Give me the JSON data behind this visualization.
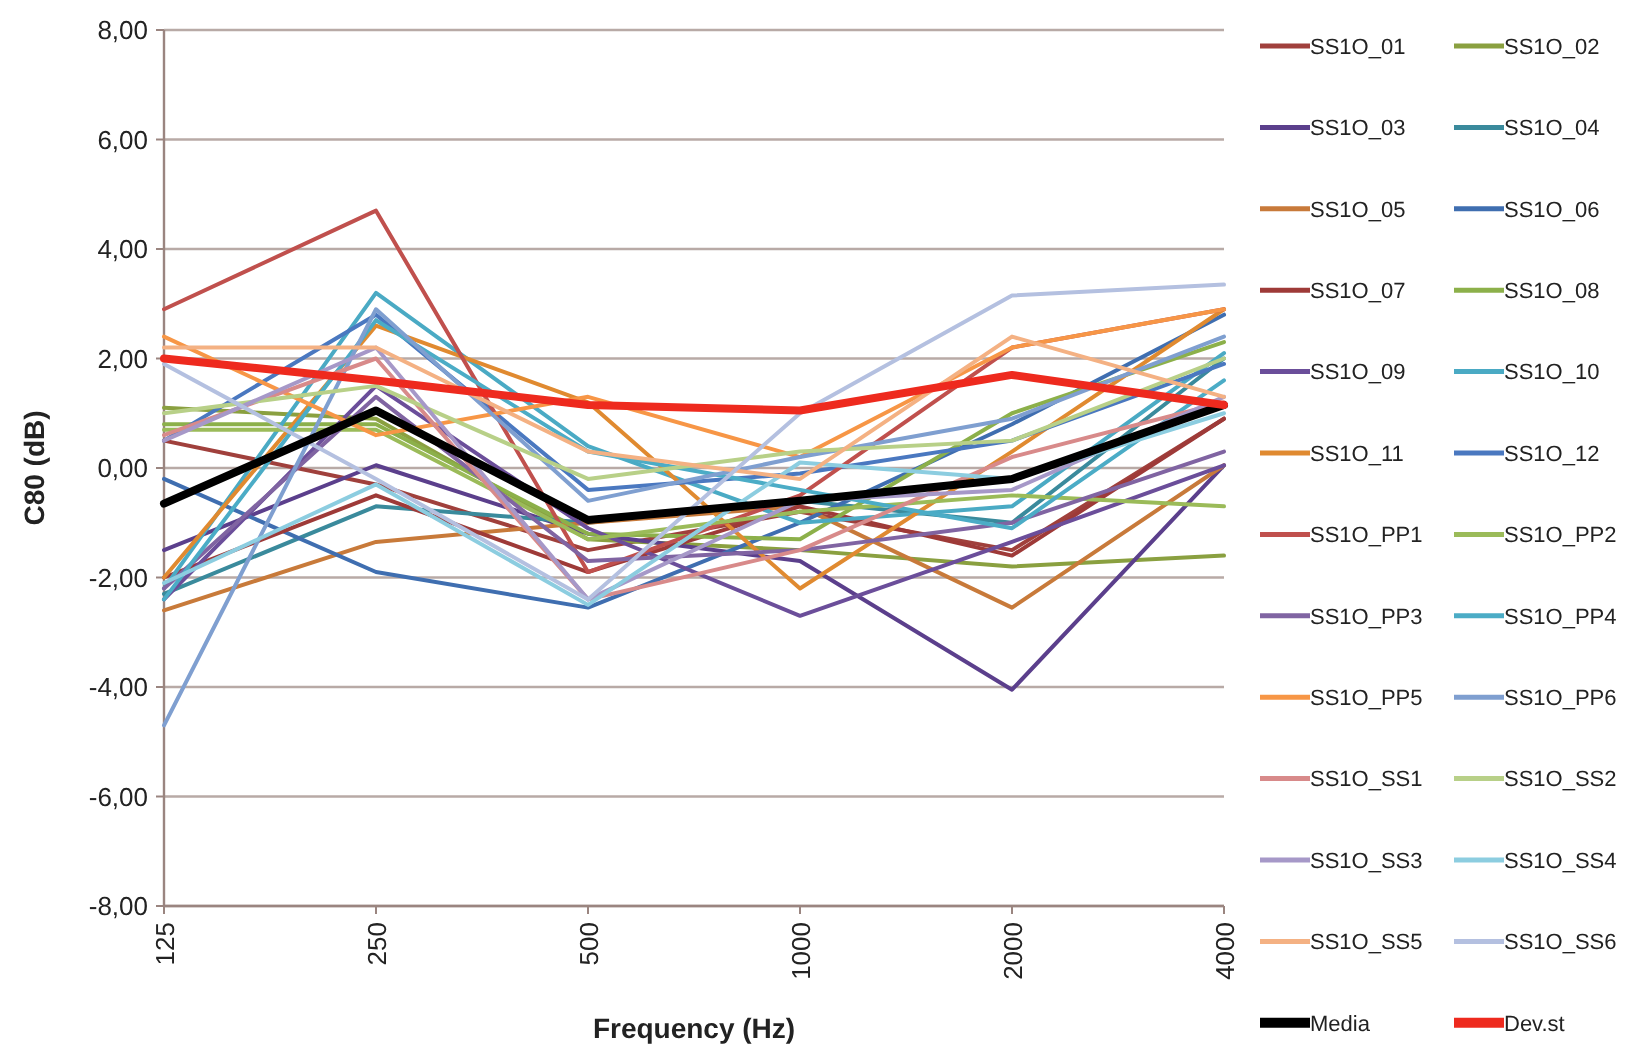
{
  "chart_data": {
    "type": "line",
    "xlabel": "Frequency (Hz)",
    "ylabel": "C80 (dB)",
    "categories": [
      "125",
      "250",
      "500",
      "1000",
      "2000",
      "4000"
    ],
    "ylim": [
      -8,
      8
    ],
    "yticks": [
      {
        "value": -8,
        "label": "-8,00"
      },
      {
        "value": -6,
        "label": "-6,00"
      },
      {
        "value": -4,
        "label": "-4,00"
      },
      {
        "value": -2,
        "label": "-2,00"
      },
      {
        "value": 0,
        "label": "0,00"
      },
      {
        "value": 2,
        "label": "2,00"
      },
      {
        "value": 4,
        "label": "4,00"
      },
      {
        "value": 6,
        "label": "6,00"
      },
      {
        "value": 8,
        "label": "8,00"
      }
    ],
    "grid": "y",
    "legend": "right",
    "marker": "none",
    "series": [
      {
        "name": "SS1O_01",
        "color": "#a0403c",
        "values": [
          0.5,
          -0.3,
          -1.5,
          -0.8,
          -1.5,
          0.9
        ]
      },
      {
        "name": "SS1O_02",
        "color": "#8aa040",
        "values": [
          1.1,
          0.9,
          -1.3,
          -1.5,
          -1.8,
          -1.6
        ]
      },
      {
        "name": "SS1O_03",
        "color": "#5b3f8c",
        "values": [
          -1.5,
          0.05,
          -1.2,
          -1.7,
          -4.05,
          0.05
        ]
      },
      {
        "name": "SS1O_04",
        "color": "#3a8a9c",
        "values": [
          -2.3,
          -0.7,
          -1.0,
          -0.6,
          -1.0,
          2.0
        ]
      },
      {
        "name": "SS1O_05",
        "color": "#c87a3a",
        "values": [
          -2.6,
          -1.35,
          -1.0,
          -0.7,
          -2.55,
          0.05
        ]
      },
      {
        "name": "SS1O_06",
        "color": "#3f6eb0",
        "values": [
          -0.2,
          -1.9,
          -2.55,
          -1.0,
          0.8,
          2.8
        ]
      },
      {
        "name": "SS1O_07",
        "color": "#9e3a38",
        "values": [
          -2.0,
          -0.5,
          -1.9,
          -0.7,
          -1.6,
          0.9
        ]
      },
      {
        "name": "SS1O_08",
        "color": "#8cb04a",
        "values": [
          0.8,
          0.8,
          -1.2,
          -1.3,
          1.0,
          2.3
        ]
      },
      {
        "name": "SS1O_09",
        "color": "#6b4e9a",
        "values": [
          -2.4,
          1.5,
          -1.1,
          -2.7,
          -1.35,
          0.05
        ]
      },
      {
        "name": "SS1O_10",
        "color": "#4aaac4",
        "values": [
          -2.2,
          3.2,
          0.4,
          -1.0,
          -0.7,
          2.1
        ]
      },
      {
        "name": "SS1O_11",
        "color": "#e08a30",
        "values": [
          -2.0,
          2.6,
          1.2,
          -2.2,
          0.3,
          2.9
        ]
      },
      {
        "name": "SS1O_12",
        "color": "#4a78c0",
        "values": [
          0.5,
          2.8,
          -0.4,
          -0.1,
          0.5,
          1.9
        ]
      },
      {
        "name": "SS1O_PP1",
        "color": "#c0504d",
        "values": [
          2.9,
          4.7,
          -1.9,
          -0.5,
          2.2,
          2.9
        ]
      },
      {
        "name": "SS1O_PP2",
        "color": "#9bbb59",
        "values": [
          0.7,
          0.7,
          -1.3,
          -0.8,
          -0.5,
          -0.7
        ]
      },
      {
        "name": "SS1O_PP3",
        "color": "#8064a2",
        "values": [
          -2.2,
          1.3,
          -1.7,
          -1.5,
          -1.0,
          0.3
        ]
      },
      {
        "name": "SS1O_PP4",
        "color": "#4bacc6",
        "values": [
          -2.4,
          2.7,
          0.3,
          -0.4,
          -1.1,
          1.6
        ]
      },
      {
        "name": "SS1O_PP5",
        "color": "#f79646",
        "values": [
          2.4,
          0.6,
          1.3,
          0.2,
          2.2,
          2.9
        ]
      },
      {
        "name": "SS1O_PP6",
        "color": "#7f9fd0",
        "values": [
          -4.7,
          2.9,
          -0.6,
          0.2,
          0.9,
          2.4
        ]
      },
      {
        "name": "SS1O_SS1",
        "color": "#d88a8a",
        "values": [
          0.6,
          2.0,
          -2.4,
          -1.5,
          0.2,
          1.2
        ]
      },
      {
        "name": "SS1O_SS2",
        "color": "#b8d088",
        "values": [
          1.0,
          1.5,
          -0.2,
          0.3,
          0.5,
          2.0
        ]
      },
      {
        "name": "SS1O_SS3",
        "color": "#a698c8",
        "values": [
          0.5,
          2.2,
          -2.4,
          -0.6,
          -0.4,
          1.3
        ]
      },
      {
        "name": "SS1O_SS4",
        "color": "#8ccde0",
        "values": [
          -2.1,
          -0.3,
          -2.5,
          0.1,
          -0.2,
          1.0
        ]
      },
      {
        "name": "SS1O_SS5",
        "color": "#f4b183",
        "values": [
          2.2,
          2.2,
          0.3,
          -0.2,
          2.4,
          1.3
        ]
      },
      {
        "name": "SS1O_SS6",
        "color": "#b4c0e0",
        "values": [
          1.9,
          -0.2,
          -2.4,
          1.0,
          3.15,
          3.35
        ]
      },
      {
        "name": "Media",
        "color": "#000000",
        "values": [
          -0.65,
          1.05,
          -0.95,
          -0.6,
          -0.2,
          1.15
        ]
      },
      {
        "name": "Dev.st",
        "color": "#ee2a1e",
        "values": [
          2.0,
          1.6,
          1.15,
          1.05,
          1.7,
          1.15
        ]
      }
    ]
  }
}
